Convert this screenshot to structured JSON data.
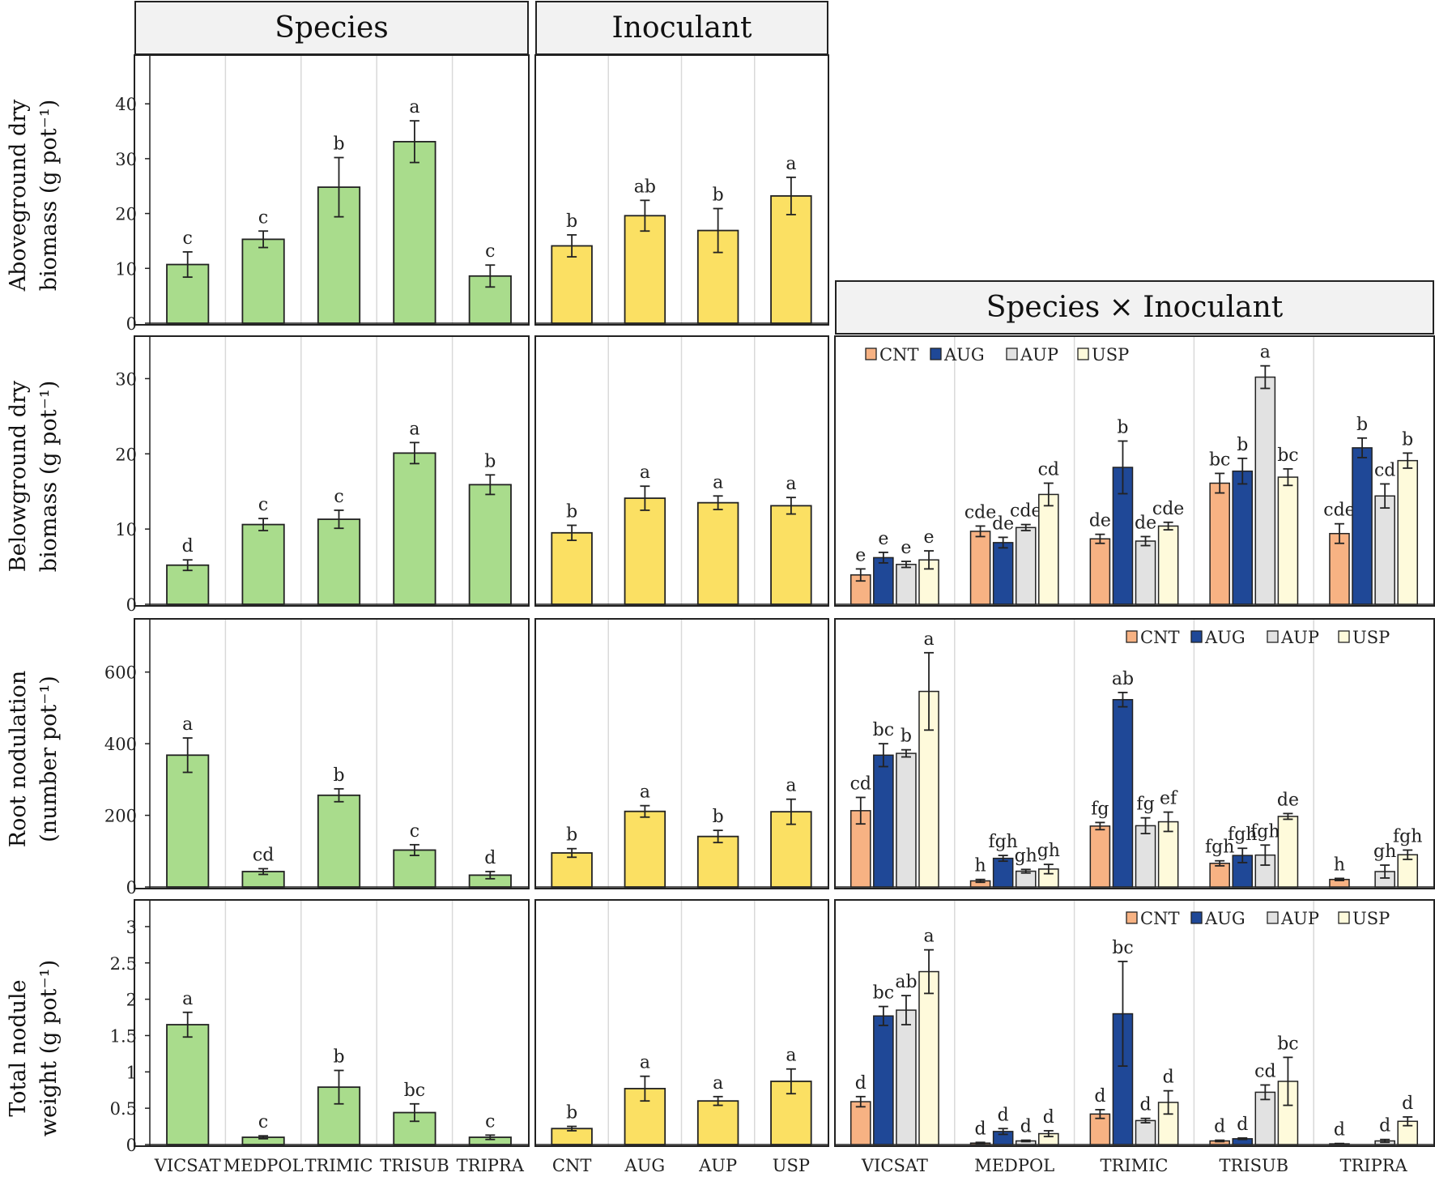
{
  "headers": {
    "species": "Species",
    "inoculant": "Inoculant",
    "interaction": "Species × Inoculant"
  },
  "y_labels": [
    {
      "line1": "Aboveground dry",
      "line2": "biomass  (g pot⁻¹)"
    },
    {
      "line1": "Belowground dry",
      "line2": "biomass  (g pot⁻¹)"
    },
    {
      "line1": "Root nodulation",
      "line2": "(number pot⁻¹)"
    },
    {
      "line1": "Total nodule",
      "line2": "weight (g pot⁻¹)"
    }
  ],
  "colors": {
    "species": "#a9dc8c",
    "inoculant": "#fbe063",
    "CNT": "#f7b283",
    "AUG": "#1f4897",
    "AUP": "#e2e2e2",
    "USP": "#fefadb"
  },
  "chart_data": [
    {
      "type": "bar",
      "row": 0,
      "panel": "species",
      "title": "Species",
      "ylabel": "Aboveground dry biomass (g pot-1)",
      "categories": [
        "VICSAT",
        "MEDPOL",
        "TRIMIC",
        "TRISUB",
        "TRIPRA"
      ],
      "values": [
        10.7,
        15.3,
        24.8,
        33.1,
        8.6
      ],
      "errors": [
        2.3,
        1.5,
        5.4,
        3.8,
        2.0
      ],
      "letters": [
        "c",
        "c",
        "b",
        "a",
        "c"
      ],
      "ylim": [
        0,
        48
      ],
      "yticks": [
        0,
        10,
        20,
        30,
        40
      ]
    },
    {
      "type": "bar",
      "row": 0,
      "panel": "inoculant",
      "title": "Inoculant",
      "categories": [
        "CNT",
        "AUG",
        "AUP",
        "USP"
      ],
      "values": [
        14.1,
        19.6,
        16.9,
        23.2
      ],
      "errors": [
        2.0,
        2.8,
        4.0,
        3.4
      ],
      "letters": [
        "b",
        "ab",
        "b",
        "a"
      ],
      "ylim": [
        0,
        48
      ]
    },
    {
      "type": "bar",
      "row": 1,
      "panel": "species",
      "ylabel": "Belowground dry biomass (g pot-1)",
      "categories": [
        "VICSAT",
        "MEDPOL",
        "TRIMIC",
        "TRISUB",
        "TRIPRA"
      ],
      "values": [
        5.2,
        10.6,
        11.3,
        20.1,
        15.9
      ],
      "errors": [
        0.7,
        0.8,
        1.2,
        1.4,
        1.3
      ],
      "letters": [
        "d",
        "c",
        "c",
        "a",
        "b"
      ],
      "ylim": [
        0,
        35
      ],
      "yticks": [
        0,
        10,
        20,
        30
      ]
    },
    {
      "type": "bar",
      "row": 1,
      "panel": "inoculant",
      "categories": [
        "CNT",
        "AUG",
        "AUP",
        "USP"
      ],
      "values": [
        9.5,
        14.1,
        13.5,
        13.1
      ],
      "errors": [
        1.0,
        1.6,
        0.9,
        1.1
      ],
      "letters": [
        "b",
        "a",
        "a",
        "a"
      ],
      "ylim": [
        0,
        35
      ]
    },
    {
      "type": "bar",
      "row": 1,
      "panel": "interaction",
      "title": "Species × Inoculant",
      "categories": [
        "VICSAT",
        "MEDPOL",
        "TRIMIC",
        "TRISUB",
        "TRIPRA"
      ],
      "legend": [
        "CNT",
        "AUG",
        "AUP",
        "USP"
      ],
      "legend_position": "top-left",
      "series": [
        {
          "name": "CNT",
          "values": [
            3.9,
            9.7,
            8.7,
            16.1,
            9.4
          ],
          "errors": [
            0.8,
            0.7,
            0.6,
            1.3,
            1.3
          ],
          "letters": [
            "e",
            "cde",
            "de",
            "bc",
            "cde"
          ]
        },
        {
          "name": "AUG",
          "values": [
            6.2,
            8.2,
            18.2,
            17.7,
            20.8
          ],
          "errors": [
            0.7,
            0.7,
            3.5,
            1.7,
            1.3
          ],
          "letters": [
            "e",
            "de",
            "b",
            "b",
            "b"
          ]
        },
        {
          "name": "AUP",
          "values": [
            5.3,
            10.2,
            8.4,
            30.2,
            14.4
          ],
          "errors": [
            0.4,
            0.4,
            0.6,
            1.5,
            1.6
          ],
          "letters": [
            "e",
            "cde",
            "de",
            "a",
            "cd"
          ]
        },
        {
          "name": "USP",
          "values": [
            5.9,
            14.6,
            10.4,
            16.9,
            19.1
          ],
          "errors": [
            1.2,
            1.5,
            0.5,
            1.1,
            1.0
          ],
          "letters": [
            "e",
            "cd",
            "cde",
            "bc",
            "b"
          ]
        }
      ],
      "ylim": [
        0,
        35
      ]
    },
    {
      "type": "bar",
      "row": 2,
      "panel": "species",
      "ylabel": "Root nodulation (number pot-1)",
      "categories": [
        "VICSAT",
        "MEDPOL",
        "TRIMIC",
        "TRISUB",
        "TRIPRA"
      ],
      "values": [
        368,
        43,
        256,
        103,
        33
      ],
      "errors": [
        48,
        8,
        18,
        15,
        10
      ],
      "letters": [
        "a",
        "cd",
        "b",
        "c",
        "d"
      ],
      "ylim": [
        0,
        735
      ],
      "yticks": [
        0,
        200,
        400,
        600
      ]
    },
    {
      "type": "bar",
      "row": 2,
      "panel": "inoculant",
      "categories": [
        "CNT",
        "AUG",
        "AUP",
        "USP"
      ],
      "values": [
        95,
        211,
        141,
        210
      ],
      "errors": [
        12,
        16,
        17,
        35
      ],
      "letters": [
        "b",
        "a",
        "b",
        "a"
      ],
      "ylim": [
        0,
        735
      ]
    },
    {
      "type": "bar",
      "row": 2,
      "panel": "interaction",
      "categories": [
        "VICSAT",
        "MEDPOL",
        "TRIMIC",
        "TRISUB",
        "TRIPRA"
      ],
      "legend": [
        "CNT",
        "AUG",
        "AUP",
        "USP"
      ],
      "legend_position": "top-right",
      "series": [
        {
          "name": "CNT",
          "values": [
            213,
            17,
            170,
            66,
            21
          ],
          "errors": [
            37,
            4,
            10,
            7,
            3
          ],
          "letters": [
            "cd",
            "h",
            "fg",
            "fgh",
            "h"
          ]
        },
        {
          "name": "AUG",
          "values": [
            368,
            80,
            523,
            88,
            0
          ],
          "errors": [
            32,
            8,
            20,
            20,
            0
          ],
          "letters": [
            "bc",
            "fgh",
            "ab",
            "fgh",
            ""
          ]
        },
        {
          "name": "AUP",
          "values": [
            373,
            44,
            171,
            89,
            43
          ],
          "errors": [
            10,
            5,
            22,
            28,
            18
          ],
          "letters": [
            "b",
            "gh",
            "fg",
            "fgh",
            "gh"
          ]
        },
        {
          "name": "USP",
          "values": [
            546,
            50,
            182,
            197,
            90
          ],
          "errors": [
            108,
            13,
            27,
            8,
            13
          ],
          "letters": [
            "a",
            "gh",
            "ef",
            "de",
            "fgh"
          ]
        }
      ],
      "ylim": [
        0,
        735
      ]
    },
    {
      "type": "bar",
      "row": 3,
      "panel": "species",
      "ylabel": "Total nodule weight (g pot-1)",
      "categories": [
        "VICSAT",
        "MEDPOL",
        "TRIMIC",
        "TRISUB",
        "TRIPRA"
      ],
      "values": [
        1.65,
        0.1,
        0.79,
        0.44,
        0.1
      ],
      "errors": [
        0.17,
        0.02,
        0.23,
        0.12,
        0.03
      ],
      "letters": [
        "a",
        "c",
        "b",
        "bc",
        "c"
      ],
      "ylim": [
        0,
        3.3
      ],
      "yticks": [
        0,
        0.5,
        1,
        1.5,
        2,
        2.5,
        3
      ]
    },
    {
      "type": "bar",
      "row": 3,
      "panel": "inoculant",
      "categories": [
        "CNT",
        "AUG",
        "AUP",
        "USP"
      ],
      "values": [
        0.22,
        0.77,
        0.6,
        0.87
      ],
      "errors": [
        0.03,
        0.17,
        0.06,
        0.17
      ],
      "letters": [
        "b",
        "a",
        "a",
        "a"
      ],
      "ylim": [
        0,
        3.3
      ]
    },
    {
      "type": "bar",
      "row": 3,
      "panel": "interaction",
      "categories": [
        "VICSAT",
        "MEDPOL",
        "TRIMIC",
        "TRISUB",
        "TRIPRA"
      ],
      "legend": [
        "CNT",
        "AUG",
        "AUP",
        "USP"
      ],
      "legend_position": "top-right",
      "series": [
        {
          "name": "CNT",
          "values": [
            0.59,
            0.02,
            0.42,
            0.05,
            0.01
          ],
          "errors": [
            0.07,
            0.01,
            0.06,
            0.01,
            0.005
          ],
          "letters": [
            "d",
            "d",
            "d",
            "d",
            "d"
          ]
        },
        {
          "name": "AUG",
          "values": [
            1.77,
            0.18,
            1.8,
            0.08,
            0
          ],
          "errors": [
            0.13,
            0.04,
            0.72,
            0.01,
            0
          ],
          "letters": [
            "bc",
            "d",
            "bc",
            "d",
            ""
          ]
        },
        {
          "name": "AUP",
          "values": [
            1.85,
            0.05,
            0.33,
            0.72,
            0.05
          ],
          "errors": [
            0.2,
            0.01,
            0.03,
            0.1,
            0.02
          ],
          "letters": [
            "ab",
            "d",
            "d",
            "cd",
            "d"
          ]
        },
        {
          "name": "USP",
          "values": [
            2.38,
            0.15,
            0.58,
            0.87,
            0.32
          ],
          "errors": [
            0.3,
            0.04,
            0.16,
            0.33,
            0.06
          ],
          "letters": [
            "a",
            "d",
            "d",
            "bc",
            "d"
          ]
        }
      ],
      "ylim": [
        0,
        3.3
      ]
    }
  ]
}
